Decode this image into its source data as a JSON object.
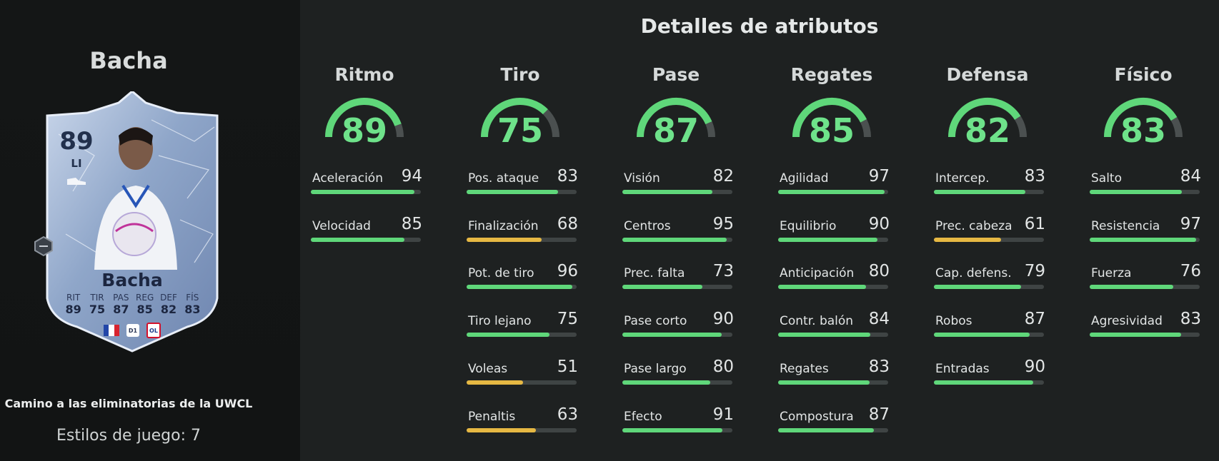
{
  "player": {
    "name": "Bacha",
    "card": {
      "rating": "89",
      "position": "LI",
      "name": "Bacha",
      "stats": [
        {
          "label": "RIT",
          "value": "89"
        },
        {
          "label": "TIR",
          "value": "75"
        },
        {
          "label": "PAS",
          "value": "87"
        },
        {
          "label": "REG",
          "value": "85"
        },
        {
          "label": "DEF",
          "value": "82"
        },
        {
          "label": "FÍS",
          "value": "83"
        }
      ]
    },
    "promo": "Camino a las eliminatorias de la UWCL",
    "playstyles": "Estilos de juego: 7"
  },
  "colors": {
    "high": "#5fd77a",
    "mid": "#e6b843",
    "track": "#3f4444",
    "gauge_track": "#4b5050"
  },
  "section_title": "Detalles de atributos",
  "categories": [
    {
      "name": "Ritmo",
      "value": 89,
      "stats": [
        {
          "name": "Aceleración",
          "value": 94
        },
        {
          "name": "Velocidad",
          "value": 85
        }
      ]
    },
    {
      "name": "Tiro",
      "value": 75,
      "stats": [
        {
          "name": "Pos. ataque",
          "value": 83
        },
        {
          "name": "Finalización",
          "value": 68
        },
        {
          "name": "Pot. de tiro",
          "value": 96
        },
        {
          "name": "Tiro lejano",
          "value": 75
        },
        {
          "name": "Voleas",
          "value": 51
        },
        {
          "name": "Penaltis",
          "value": 63
        }
      ]
    },
    {
      "name": "Pase",
      "value": 87,
      "stats": [
        {
          "name": "Visión",
          "value": 82
        },
        {
          "name": "Centros",
          "value": 95
        },
        {
          "name": "Prec. falta",
          "value": 73
        },
        {
          "name": "Pase corto",
          "value": 90
        },
        {
          "name": "Pase largo",
          "value": 80
        },
        {
          "name": "Efecto",
          "value": 91
        }
      ]
    },
    {
      "name": "Regates",
      "value": 85,
      "stats": [
        {
          "name": "Agilidad",
          "value": 97
        },
        {
          "name": "Equilibrio",
          "value": 90
        },
        {
          "name": "Anticipación",
          "value": 80
        },
        {
          "name": "Contr. balón",
          "value": 84
        },
        {
          "name": "Regates",
          "value": 83
        },
        {
          "name": "Compostura",
          "value": 87
        }
      ]
    },
    {
      "name": "Defensa",
      "value": 82,
      "stats": [
        {
          "name": "Intercep.",
          "value": 83
        },
        {
          "name": "Prec. cabeza",
          "value": 61
        },
        {
          "name": "Cap. defens.",
          "value": 79
        },
        {
          "name": "Robos",
          "value": 87
        },
        {
          "name": "Entradas",
          "value": 90
        }
      ]
    },
    {
      "name": "Físico",
      "value": 83,
      "stats": [
        {
          "name": "Salto",
          "value": 84
        },
        {
          "name": "Resistencia",
          "value": 97
        },
        {
          "name": "Fuerza",
          "value": 76
        },
        {
          "name": "Agresividad",
          "value": 83
        }
      ]
    }
  ]
}
